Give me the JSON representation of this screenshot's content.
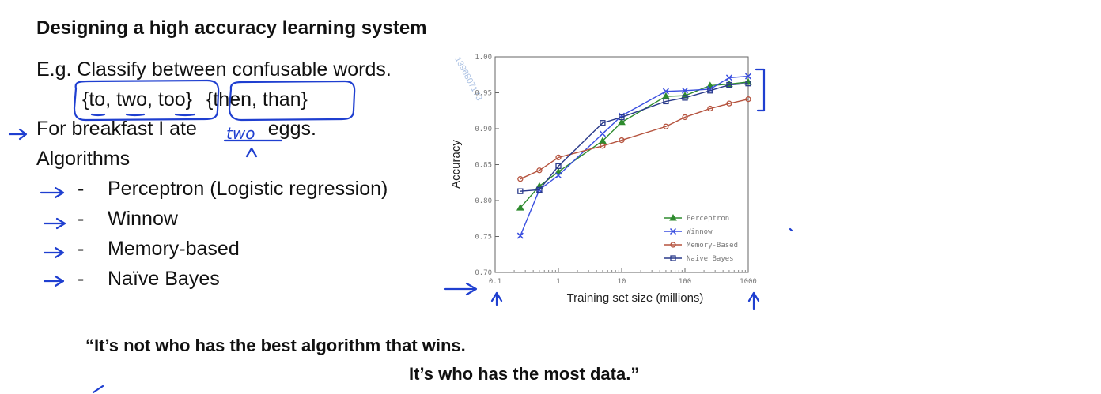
{
  "slide": {
    "title": "Designing a high accuracy learning system",
    "example_intro": "E.g. Classify between confusable words.",
    "word_group_1": "{to, two, too}",
    "word_group_2": "{then, than}",
    "sentence_before": "For breakfast I ate",
    "sentence_handwritten": "two",
    "sentence_after": "eggs.",
    "algorithms_heading": "Algorithms",
    "algorithms": [
      {
        "dash": "-",
        "label": "Perceptron (Logistic regression)"
      },
      {
        "dash": "-",
        "label": "Winnow"
      },
      {
        "dash": "-",
        "label": "Memory-based"
      },
      {
        "dash": "-",
        "label": "Naïve Bayes"
      }
    ],
    "quote_line_1": "“It’s not who has the best algorithm that wins.",
    "quote_line_2": "It’s who has the most data.”",
    "watermark": "1396807173",
    "ink_color": "#1f3fd0"
  },
  "chart_data": {
    "type": "line",
    "title": "",
    "xlabel": "Training set size (millions)",
    "ylabel": "Accuracy",
    "x_scale": "log",
    "xlim": [
      0.1,
      1000
    ],
    "ylim": [
      0.7,
      1.0
    ],
    "x_ticks": [
      "0.1",
      "1",
      "10",
      "100",
      "1000"
    ],
    "y_ticks": [
      "0.70",
      "0.75",
      "0.80",
      "0.85",
      "0.90",
      "0.95",
      "1.00"
    ],
    "grid": false,
    "legend": "bottom-right",
    "x": [
      0.25,
      0.5,
      1,
      5,
      10,
      50,
      100,
      250,
      500,
      1000
    ],
    "series": [
      {
        "name": "Perceptron",
        "color": "#2e8b2e",
        "marker": "triangle",
        "values": [
          0.79,
          0.82,
          0.84,
          0.883,
          0.909,
          0.945,
          0.946,
          0.96,
          0.962,
          0.965
        ]
      },
      {
        "name": "Winnow",
        "color": "#3a4fe0",
        "marker": "x",
        "values": [
          0.751,
          0.815,
          0.835,
          0.893,
          0.918,
          0.952,
          0.953,
          0.955,
          0.971,
          0.973
        ]
      },
      {
        "name": "Memory-Based",
        "color": "#b5533e",
        "marker": "circle",
        "values": [
          0.83,
          0.842,
          0.86,
          0.876,
          0.884,
          0.903,
          0.916,
          0.928,
          0.935,
          0.941
        ]
      },
      {
        "name": "Naive Bayes",
        "color": "#2a3a8a",
        "marker": "square",
        "values": [
          0.813,
          0.815,
          0.848,
          0.908,
          0.916,
          0.938,
          0.943,
          0.953,
          0.961,
          0.963
        ]
      }
    ]
  }
}
